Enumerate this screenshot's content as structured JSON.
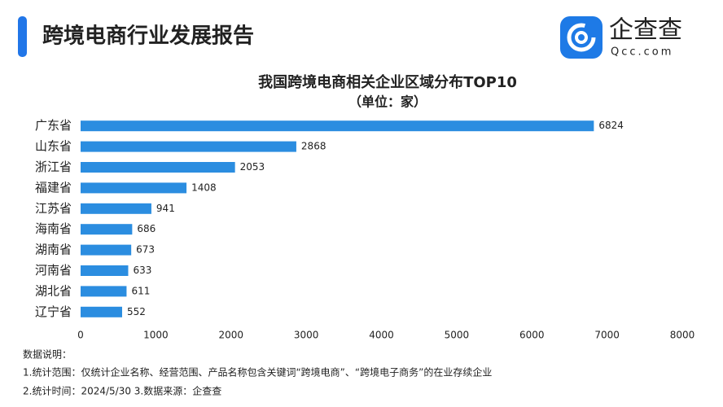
{
  "header": {
    "title": "跨境电商行业发展报告"
  },
  "logo": {
    "name": "企查查",
    "domain": "Qcc.com"
  },
  "chart_data": {
    "type": "bar",
    "orientation": "horizontal",
    "title": "我国跨境电商相关企业区域分布TOP10",
    "subtitle": "（单位：家）",
    "categories": [
      "广东省",
      "山东省",
      "浙江省",
      "福建省",
      "江苏省",
      "海南省",
      "湖南省",
      "河南省",
      "湖北省",
      "辽宁省"
    ],
    "values": [
      6824,
      2868,
      2053,
      1408,
      941,
      686,
      673,
      633,
      611,
      552
    ],
    "color": "#2b8de0",
    "xlim": [
      0,
      8000
    ],
    "xticks": [
      0,
      1000,
      2000,
      3000,
      4000,
      5000,
      6000,
      7000,
      8000
    ],
    "grid": false
  },
  "notes": [
    "数据说明：",
    "1.统计范围：仅统计企业名称、经营范围、产品名称包含关键词“跨境电商”、“跨境电子商务”的在业存续企业",
    "2.统计时间：2024/5/30    3.数据来源：企查查"
  ]
}
